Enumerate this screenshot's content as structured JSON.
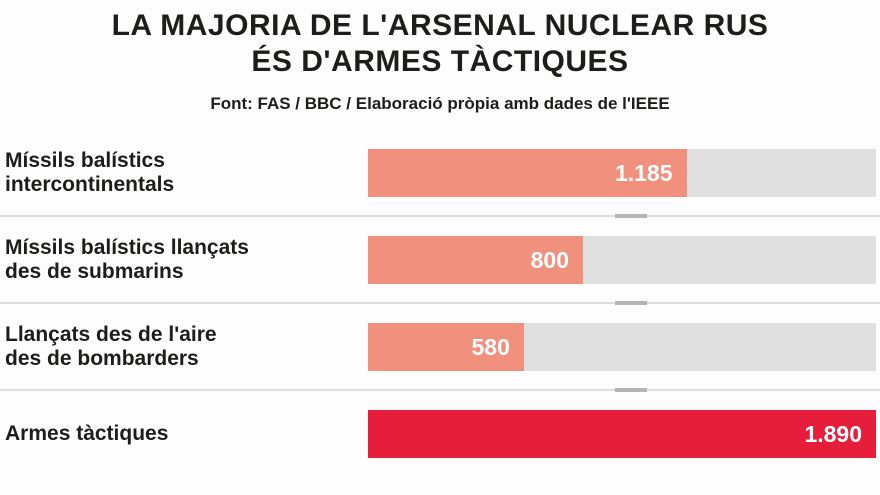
{
  "header": {
    "title_line1": "LA MAJORIA DE L'ARSENAL NUCLEAR RUS",
    "title_line2": "ÉS D'ARMES TÀCTIQUES",
    "source": "Font: FAS / BBC / Elaboració pròpia amb dades de l'IEEE"
  },
  "colors": {
    "bar_default": "#f2907e",
    "bar_emphasis": "#e61e3c",
    "track": "#e1e0e1",
    "text": "#1d1d1b",
    "value_text": "#ffffff",
    "separator": "#dcdcdc"
  },
  "chart_data": {
    "type": "bar",
    "orientation": "horizontal",
    "title": "LA MAJORIA DE L'ARSENAL NUCLEAR RUS ÉS D'ARMES TÀCTIQUES",
    "source": "Font: FAS / BBC / Elaboració pròpia amb dades de l'IEEE",
    "xlim": [
      0,
      1890
    ],
    "grid": false,
    "legend": false,
    "categories": [
      "Míssils balístics intercontinentals",
      "Míssils balístics llançats des de submarins",
      "Llançats des de l'aire des de bombarders",
      "Armes tàctiques"
    ],
    "values": [
      1185,
      800,
      580,
      1890
    ],
    "rows": [
      {
        "label_line1": "Míssils balístics",
        "label_line2": "intercontinentals",
        "value": 1185,
        "value_label": "1.185",
        "emphasis": false
      },
      {
        "label_line1": "Míssils balístics llançats",
        "label_line2": "des de submarins",
        "value": 800,
        "value_label": "800",
        "emphasis": false
      },
      {
        "label_line1": "Llançats des de l'aire",
        "label_line2": "des de bombarders",
        "value": 580,
        "value_label": "580",
        "emphasis": false
      },
      {
        "label_line1": "Armes tàctiques",
        "label_line2": "",
        "value": 1890,
        "value_label": "1.890",
        "emphasis": true
      }
    ]
  }
}
